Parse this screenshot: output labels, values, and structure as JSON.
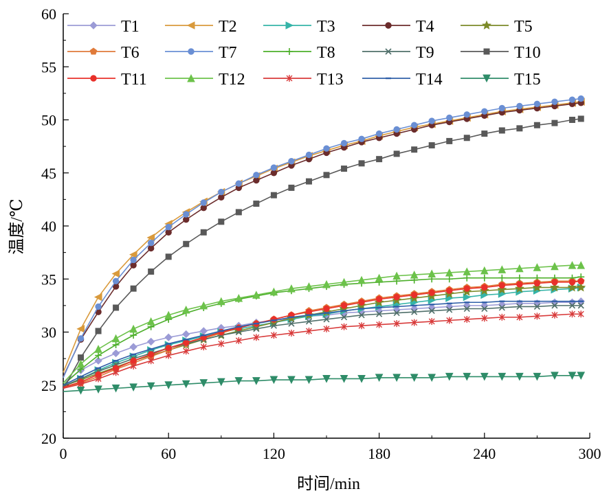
{
  "chart_data": {
    "type": "line",
    "title": "",
    "xlabel": "时间/min",
    "ylabel": "温度/℃",
    "xlim": [
      0,
      300
    ],
    "ylim": [
      20,
      60
    ],
    "x_ticks": [
      0,
      60,
      120,
      180,
      240,
      300
    ],
    "y_ticks": [
      20,
      25,
      30,
      35,
      40,
      45,
      50,
      55,
      60
    ],
    "grid": false,
    "legend_position": "top",
    "x": [
      0,
      10,
      20,
      30,
      40,
      50,
      60,
      70,
      80,
      90,
      100,
      110,
      120,
      130,
      140,
      150,
      160,
      170,
      180,
      190,
      200,
      210,
      220,
      230,
      240,
      250,
      260,
      270,
      280,
      290,
      295
    ],
    "series": [
      {
        "name": "T1",
        "color": "#9b9bd6",
        "marker": "diamond",
        "values": [
          25.2,
          26.4,
          27.3,
          28.0,
          28.6,
          29.1,
          29.5,
          29.8,
          30.1,
          30.4,
          30.6,
          30.9,
          31.1,
          31.3,
          31.5,
          31.6,
          31.8,
          31.9,
          32.0,
          32.1,
          32.2,
          32.3,
          32.4,
          32.5,
          32.5,
          32.6,
          32.7,
          32.7,
          32.8,
          32.8,
          32.9
        ]
      },
      {
        "name": "T2",
        "color": "#d99a3c",
        "marker": "triangle-left",
        "values": [
          26.2,
          30.3,
          33.3,
          35.5,
          37.3,
          38.9,
          40.2,
          41.3,
          42.3,
          43.2,
          44.0,
          44.7,
          45.4,
          46.0,
          46.6,
          47.1,
          47.6,
          48.0,
          48.5,
          48.9,
          49.3,
          49.6,
          49.9,
          50.2,
          50.5,
          50.8,
          51.0,
          51.2,
          51.4,
          51.6,
          51.7
        ]
      },
      {
        "name": "T3",
        "color": "#35b4a8",
        "marker": "triangle-right",
        "values": [
          24.9,
          25.6,
          26.4,
          27.1,
          27.7,
          28.3,
          28.8,
          29.2,
          29.6,
          30.0,
          30.3,
          30.6,
          30.9,
          31.2,
          31.5,
          31.7,
          32.0,
          32.2,
          32.4,
          32.6,
          32.8,
          33.0,
          33.2,
          33.3,
          33.5,
          33.6,
          33.8,
          33.9,
          34.0,
          34.1,
          34.2
        ]
      },
      {
        "name": "T4",
        "color": "#6b2c2c",
        "marker": "circle",
        "values": [
          25.8,
          29.3,
          31.9,
          34.3,
          36.3,
          37.9,
          39.4,
          40.6,
          41.7,
          42.7,
          43.6,
          44.3,
          45.0,
          45.7,
          46.3,
          46.9,
          47.4,
          47.9,
          48.3,
          48.7,
          49.1,
          49.5,
          49.8,
          50.1,
          50.4,
          50.7,
          50.9,
          51.1,
          51.3,
          51.5,
          51.6
        ]
      },
      {
        "name": "T5",
        "color": "#7c8a28",
        "marker": "star",
        "values": [
          24.9,
          25.5,
          26.1,
          26.7,
          27.3,
          27.8,
          28.3,
          28.8,
          29.3,
          29.7,
          30.1,
          30.5,
          30.9,
          31.3,
          31.6,
          31.9,
          32.2,
          32.5,
          32.8,
          33.0,
          33.2,
          33.4,
          33.6,
          33.8,
          33.9,
          34.0,
          34.1,
          34.2,
          34.2,
          34.2,
          34.2
        ]
      },
      {
        "name": "T6",
        "color": "#e07a3a",
        "marker": "pentagon",
        "values": [
          24.8,
          25.2,
          25.8,
          26.5,
          27.1,
          27.7,
          28.3,
          28.9,
          29.4,
          29.9,
          30.4,
          30.8,
          31.2,
          31.6,
          32.0,
          32.3,
          32.6,
          32.9,
          33.2,
          33.4,
          33.6,
          33.8,
          34.0,
          34.2,
          34.3,
          34.5,
          34.6,
          34.7,
          34.8,
          34.8,
          34.8
        ]
      },
      {
        "name": "T7",
        "color": "#6a8fd4",
        "marker": "circle",
        "values": [
          25.7,
          29.4,
          32.4,
          34.8,
          36.8,
          38.4,
          39.9,
          41.1,
          42.2,
          43.2,
          44.0,
          44.8,
          45.5,
          46.1,
          46.7,
          47.3,
          47.8,
          48.2,
          48.7,
          49.1,
          49.5,
          49.9,
          50.2,
          50.5,
          50.8,
          51.1,
          51.3,
          51.5,
          51.7,
          51.9,
          52.0
        ]
      },
      {
        "name": "T8",
        "color": "#4caf2a",
        "marker": "plus",
        "values": [
          25.0,
          26.5,
          27.8,
          28.8,
          29.7,
          30.5,
          31.2,
          31.8,
          32.3,
          32.7,
          33.1,
          33.4,
          33.7,
          33.9,
          34.1,
          34.3,
          34.5,
          34.6,
          34.7,
          34.8,
          34.9,
          35.0,
          35.0,
          35.1,
          35.1,
          35.1,
          35.1,
          35.1,
          35.1,
          35.1,
          35.2
        ]
      },
      {
        "name": "T9",
        "color": "#4f6f6a",
        "marker": "x",
        "values": [
          24.9,
          25.6,
          26.3,
          26.9,
          27.5,
          28.0,
          28.5,
          28.9,
          29.3,
          29.7,
          30.0,
          30.3,
          30.6,
          30.8,
          31.0,
          31.2,
          31.4,
          31.6,
          31.7,
          31.8,
          31.9,
          32.0,
          32.1,
          32.2,
          32.2,
          32.3,
          32.4,
          32.4,
          32.5,
          32.5,
          32.5
        ]
      },
      {
        "name": "T10",
        "color": "#595959",
        "marker": "square",
        "values": [
          24.6,
          27.6,
          30.1,
          32.3,
          34.1,
          35.7,
          37.1,
          38.3,
          39.4,
          40.4,
          41.3,
          42.1,
          42.9,
          43.6,
          44.2,
          44.8,
          45.4,
          45.9,
          46.3,
          46.8,
          47.2,
          47.6,
          48.0,
          48.3,
          48.7,
          49.0,
          49.2,
          49.5,
          49.7,
          50.0,
          50.1
        ]
      },
      {
        "name": "T11",
        "color": "#e8302a",
        "marker": "circle",
        "values": [
          24.8,
          25.3,
          26.0,
          26.6,
          27.3,
          27.9,
          28.5,
          29.0,
          29.5,
          30.0,
          30.4,
          30.8,
          31.2,
          31.6,
          31.9,
          32.2,
          32.5,
          32.8,
          33.1,
          33.3,
          33.5,
          33.7,
          33.9,
          34.1,
          34.2,
          34.4,
          34.5,
          34.6,
          34.7,
          34.7,
          34.8
        ]
      },
      {
        "name": "T12",
        "color": "#6cc24a",
        "marker": "triangle-up",
        "values": [
          25.2,
          27.0,
          28.4,
          29.4,
          30.3,
          31.0,
          31.6,
          32.1,
          32.5,
          32.9,
          33.2,
          33.5,
          33.8,
          34.1,
          34.3,
          34.5,
          34.7,
          34.9,
          35.1,
          35.3,
          35.4,
          35.5,
          35.6,
          35.7,
          35.8,
          35.9,
          36.0,
          36.1,
          36.2,
          36.3,
          36.3
        ]
      },
      {
        "name": "T13",
        "color": "#d83a3a",
        "marker": "asterisk",
        "values": [
          24.7,
          25.1,
          25.6,
          26.2,
          26.8,
          27.3,
          27.8,
          28.2,
          28.6,
          28.9,
          29.2,
          29.5,
          29.7,
          29.9,
          30.1,
          30.3,
          30.5,
          30.6,
          30.7,
          30.8,
          30.9,
          31.0,
          31.1,
          31.2,
          31.3,
          31.4,
          31.4,
          31.5,
          31.6,
          31.7,
          31.7
        ]
      },
      {
        "name": "T14",
        "color": "#2f5fa8",
        "marker": "dash",
        "values": [
          25.0,
          25.8,
          26.6,
          27.3,
          27.9,
          28.4,
          28.9,
          29.3,
          29.7,
          30.1,
          30.5,
          30.8,
          31.1,
          31.4,
          31.6,
          31.8,
          32.0,
          32.2,
          32.3,
          32.4,
          32.5,
          32.6,
          32.7,
          32.8,
          32.8,
          32.9,
          32.9,
          32.9,
          32.9,
          32.9,
          32.9
        ]
      },
      {
        "name": "T15",
        "color": "#2e8c68",
        "marker": "triangle-down",
        "values": [
          24.4,
          24.5,
          24.6,
          24.7,
          24.8,
          24.9,
          25.0,
          25.1,
          25.2,
          25.3,
          25.4,
          25.4,
          25.5,
          25.5,
          25.5,
          25.6,
          25.6,
          25.6,
          25.7,
          25.7,
          25.7,
          25.7,
          25.8,
          25.8,
          25.8,
          25.8,
          25.8,
          25.8,
          25.9,
          25.9,
          25.9
        ]
      }
    ]
  }
}
